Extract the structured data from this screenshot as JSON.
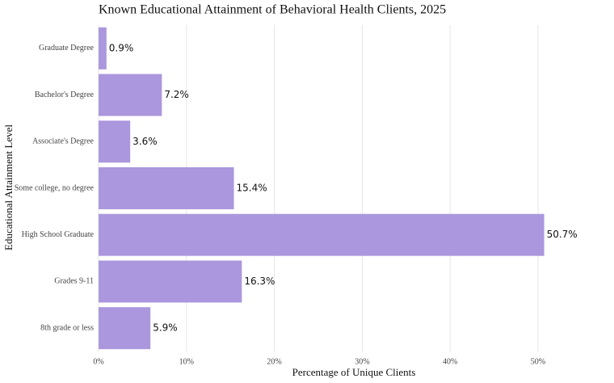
{
  "chart_data": {
    "type": "bar",
    "orientation": "horizontal",
    "title": "Known Educational Attainment of Behavioral Health Clients, 2025",
    "x_label": "Percentage of Unique Clients",
    "y_label": "Educational Attainment Level",
    "categories": [
      "Graduate Degree",
      "Bachelor's Degree",
      "Associate's Degree",
      "Some college, no degree",
      "High School Graduate",
      "Grades 9-11",
      "8th grade or less"
    ],
    "values": [
      0.9,
      7.2,
      3.6,
      15.4,
      50.7,
      16.3,
      5.9
    ],
    "value_labels": [
      "0.9%",
      "7.2%",
      "3.6%",
      "15.4%",
      "50.7%",
      "16.3%",
      "5.9%"
    ],
    "color": "#ab97dd",
    "xlim": [
      0,
      58
    ],
    "xticks": [
      {
        "value": 0,
        "label": "0%"
      },
      {
        "value": 10,
        "label": "10%"
      },
      {
        "value": 20,
        "label": "20%"
      },
      {
        "value": 30,
        "label": "30%"
      },
      {
        "value": 40,
        "label": "40%"
      },
      {
        "value": 50,
        "label": "50%"
      }
    ],
    "grid": true
  }
}
